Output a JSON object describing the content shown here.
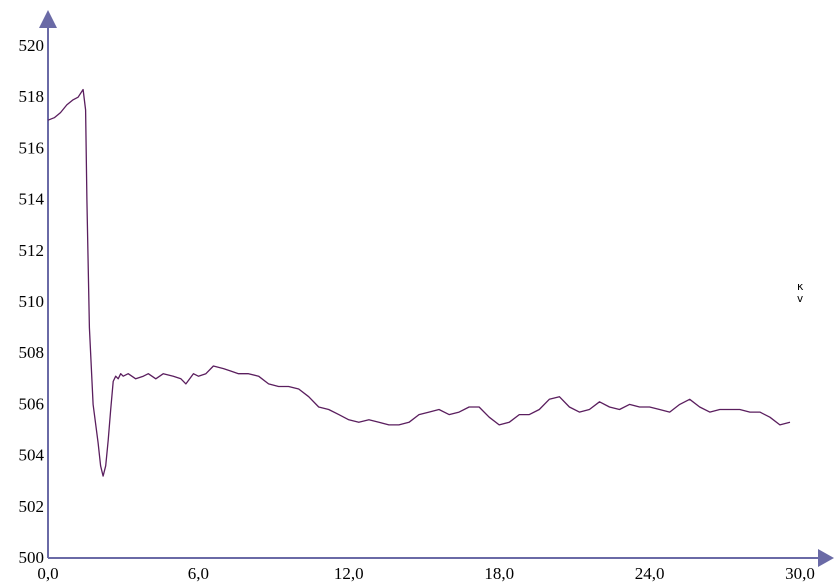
{
  "chart_data": {
    "type": "line",
    "title": "",
    "xlabel": "",
    "ylabel": "",
    "unit_label_lines": [
      "к",
      "v"
    ],
    "xlim": [
      0,
      30
    ],
    "ylim": [
      500,
      520
    ],
    "x_ticks": [
      {
        "value": 0,
        "label": "0,0"
      },
      {
        "value": 6,
        "label": "6,0"
      },
      {
        "value": 12,
        "label": "12,0"
      },
      {
        "value": 18,
        "label": "18,0"
      },
      {
        "value": 24,
        "label": "24,0"
      },
      {
        "value": 30,
        "label": "30,0"
      }
    ],
    "y_ticks": [
      {
        "value": 500,
        "label": "500"
      },
      {
        "value": 502,
        "label": "502"
      },
      {
        "value": 504,
        "label": "504"
      },
      {
        "value": 506,
        "label": "506"
      },
      {
        "value": 508,
        "label": "508"
      },
      {
        "value": 510,
        "label": "510"
      },
      {
        "value": 512,
        "label": "512"
      },
      {
        "value": 514,
        "label": "514"
      },
      {
        "value": 516,
        "label": "516"
      },
      {
        "value": 518,
        "label": "518"
      },
      {
        "value": 520,
        "label": "520"
      }
    ],
    "grid": false,
    "legend": "none",
    "colors": {
      "line": "#5a1e5e",
      "axis": "#6a6aa6",
      "axis_arrow": "#6a6aa6"
    },
    "series": [
      {
        "x": [
          0.0,
          0.25,
          0.5,
          0.75,
          1.0,
          1.2,
          1.4,
          1.5,
          1.55,
          1.65,
          1.8,
          2.0,
          2.1,
          2.2,
          2.3,
          2.4,
          2.5,
          2.6,
          2.7,
          2.8,
          2.9,
          3.0,
          3.2,
          3.5,
          3.8,
          4.0,
          4.3,
          4.6,
          5.0,
          5.3,
          5.5,
          5.8,
          6.0,
          6.3,
          6.6,
          7.0,
          7.3,
          7.6,
          8.0,
          8.4,
          8.8,
          9.2,
          9.6,
          10.0,
          10.4,
          10.8,
          11.2,
          11.6,
          12.0,
          12.4,
          12.8,
          13.2,
          13.6,
          14.0,
          14.4,
          14.8,
          15.2,
          15.6,
          16.0,
          16.4,
          16.8,
          17.2,
          17.6,
          18.0,
          18.4,
          18.8,
          19.2,
          19.6,
          20.0,
          20.4,
          20.8,
          21.2,
          21.6,
          22.0,
          22.4,
          22.8,
          23.2,
          23.6,
          24.0,
          24.4,
          24.8,
          25.2,
          25.6,
          26.0,
          26.4,
          26.8,
          27.2,
          27.6,
          28.0,
          28.4,
          28.8,
          29.2,
          29.6
        ],
        "y": [
          517.1,
          517.2,
          517.4,
          517.7,
          517.9,
          518.0,
          518.3,
          517.5,
          514.0,
          509.0,
          506.0,
          504.5,
          503.6,
          503.2,
          503.6,
          504.6,
          505.8,
          506.9,
          507.1,
          507.0,
          507.2,
          507.1,
          507.2,
          507.0,
          507.1,
          507.2,
          507.0,
          507.2,
          507.1,
          507.0,
          506.8,
          507.2,
          507.1,
          507.2,
          507.5,
          507.4,
          507.3,
          507.2,
          507.2,
          507.1,
          506.8,
          506.7,
          506.7,
          506.6,
          506.3,
          505.9,
          505.8,
          505.6,
          505.4,
          505.3,
          505.4,
          505.3,
          505.2,
          505.2,
          505.3,
          505.6,
          505.7,
          505.8,
          505.6,
          505.7,
          505.9,
          505.9,
          505.5,
          505.2,
          505.3,
          505.6,
          505.6,
          505.8,
          506.2,
          506.3,
          505.9,
          505.7,
          505.8,
          506.1,
          505.9,
          505.8,
          506.0,
          505.9,
          505.9,
          505.8,
          505.7,
          506.0,
          506.2,
          505.9,
          505.7,
          505.8,
          505.8,
          505.8,
          505.7,
          505.7,
          505.5,
          505.2,
          505.3
        ]
      }
    ]
  }
}
